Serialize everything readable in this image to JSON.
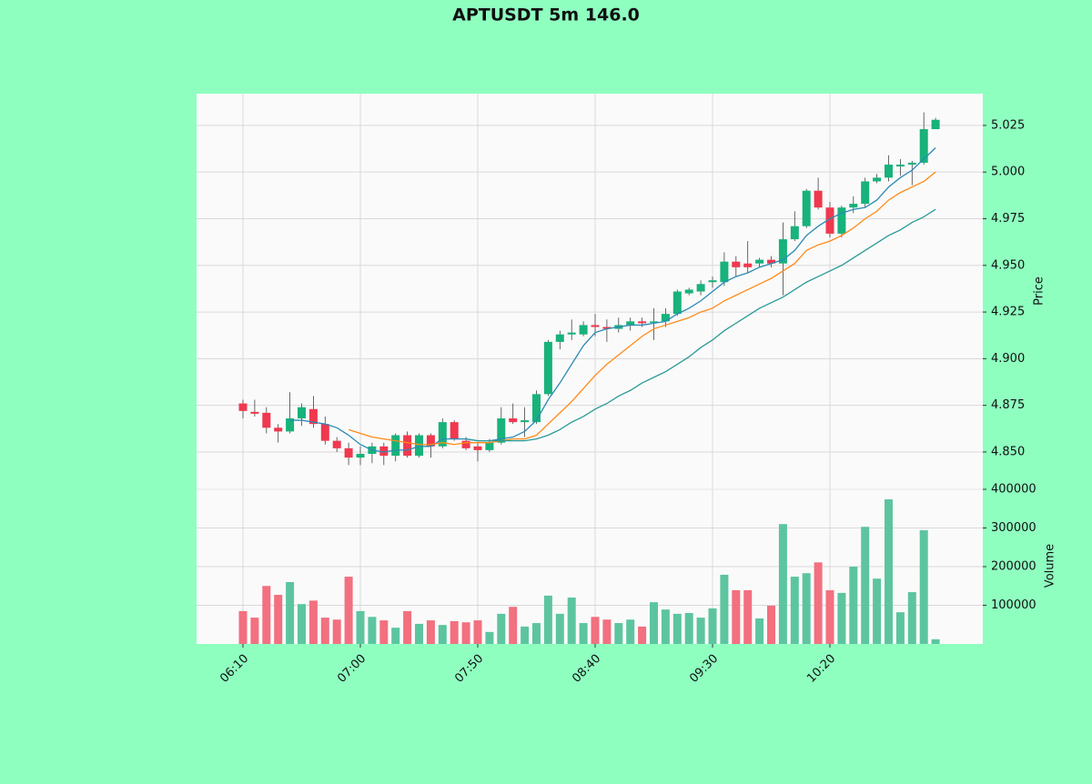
{
  "chart_data": {
    "type": "candlestick",
    "title": "APTUSDT 5m 146.0",
    "categories": [
      "06:10",
      null,
      null,
      null,
      null,
      null,
      null,
      null,
      null,
      null,
      "07:00",
      null,
      null,
      null,
      null,
      null,
      null,
      null,
      null,
      null,
      "07:50",
      null,
      null,
      null,
      null,
      null,
      null,
      null,
      null,
      null,
      "08:40",
      null,
      null,
      null,
      null,
      null,
      null,
      null,
      null,
      null,
      "09:30",
      null,
      null,
      null,
      null,
      null,
      null,
      null,
      null,
      null,
      "10:20",
      null,
      null,
      null,
      null,
      null,
      null,
      null,
      null,
      null
    ],
    "open": [
      4.876,
      4.8715,
      4.871,
      4.863,
      4.861,
      4.868,
      4.873,
      4.865,
      4.856,
      4.852,
      4.847,
      4.849,
      4.853,
      4.848,
      4.859,
      4.848,
      4.859,
      4.853,
      4.866,
      4.856,
      4.853,
      4.851,
      4.855,
      4.868,
      4.866,
      4.866,
      4.881,
      4.909,
      4.913,
      4.913,
      4.918,
      4.917,
      4.916,
      4.918,
      4.92,
      4.9195,
      4.92,
      4.924,
      4.935,
      4.936,
      4.941,
      4.941,
      4.952,
      4.951,
      4.951,
      4.953,
      4.951,
      4.964,
      4.971,
      4.99,
      4.981,
      4.967,
      4.981,
      4.983,
      4.995,
      4.997,
      5.003,
      5.004,
      5.005,
      5.023
    ],
    "high": [
      4.878,
      4.878,
      4.874,
      4.865,
      4.882,
      4.876,
      4.88,
      4.869,
      4.858,
      4.855,
      4.853,
      4.855,
      4.855,
      4.86,
      4.861,
      4.86,
      4.86,
      4.868,
      4.867,
      4.858,
      4.855,
      4.857,
      4.874,
      4.876,
      4.874,
      4.883,
      4.91,
      4.915,
      4.921,
      4.92,
      4.924,
      4.921,
      4.922,
      4.922,
      4.922,
      4.927,
      4.927,
      4.937,
      4.938,
      4.942,
      4.944,
      4.957,
      4.955,
      4.963,
      4.954,
      4.955,
      4.973,
      4.979,
      4.991,
      4.997,
      4.984,
      4.982,
      4.987,
      4.997,
      4.999,
      5.009,
      5.007,
      5.006,
      5.032,
      5.029
    ],
    "low": [
      4.868,
      4.869,
      4.86,
      4.855,
      4.86,
      4.864,
      4.863,
      4.854,
      4.85,
      4.843,
      4.843,
      4.844,
      4.843,
      4.845,
      4.847,
      4.847,
      4.847,
      4.852,
      4.856,
      4.851,
      4.845,
      4.85,
      4.854,
      4.865,
      4.858,
      4.865,
      4.88,
      4.905,
      4.91,
      4.912,
      4.912,
      4.909,
      4.914,
      4.915,
      4.917,
      4.91,
      4.917,
      4.923,
      4.934,
      4.934,
      4.938,
      4.939,
      4.944,
      4.946,
      4.949,
      4.949,
      4.934,
      4.963,
      4.97,
      4.98,
      4.965,
      4.965,
      4.978,
      4.981,
      4.994,
      4.995,
      4.998,
      4.993,
      5.004,
      5.023
    ],
    "close": [
      4.872,
      4.8705,
      4.863,
      4.861,
      4.868,
      4.874,
      4.865,
      4.856,
      4.852,
      4.847,
      4.849,
      4.853,
      4.848,
      4.859,
      4.848,
      4.859,
      4.853,
      4.866,
      4.857,
      4.852,
      4.851,
      4.855,
      4.868,
      4.866,
      4.867,
      4.881,
      4.909,
      4.913,
      4.914,
      4.918,
      4.917,
      4.916,
      4.918,
      4.92,
      4.919,
      4.92,
      4.924,
      4.936,
      4.937,
      4.94,
      4.942,
      4.952,
      4.949,
      4.949,
      4.953,
      4.951,
      4.964,
      4.971,
      4.99,
      4.981,
      4.967,
      4.981,
      4.983,
      4.995,
      4.997,
      5.004,
      5.004,
      5.005,
      5.023,
      5.028
    ],
    "volume": [
      85000,
      68000,
      150000,
      127000,
      160000,
      103000,
      112000,
      68000,
      63000,
      174000,
      85000,
      70000,
      61000,
      42000,
      85000,
      52000,
      61000,
      49000,
      59000,
      56000,
      61000,
      31000,
      78000,
      96000,
      45000,
      54000,
      125000,
      78000,
      120000,
      54000,
      70000,
      63000,
      54000,
      63000,
      45000,
      108000,
      89000,
      78000,
      80000,
      68000,
      92000,
      179000,
      139000,
      139000,
      66000,
      99000,
      310000,
      174000,
      183000,
      211000,
      139000,
      132000,
      200000,
      303000,
      169000,
      374000,
      82000,
      134000,
      294000,
      12000
    ],
    "up_color": "#18b27b",
    "down_color": "#f0384e",
    "volume_up_color": "#5cc59f",
    "volume_down_color": "#f2707f",
    "moving_averages": [
      {
        "color": "#2a8ab5",
        "values": [
          null,
          null,
          null,
          null,
          4.867,
          4.867,
          4.866,
          4.865,
          4.863,
          4.859,
          4.854,
          4.851,
          4.85,
          4.851,
          4.851,
          4.853,
          4.853,
          4.857,
          4.857,
          4.857,
          4.856,
          4.856,
          4.857,
          4.858,
          4.861,
          4.867,
          4.878,
          4.887,
          4.897,
          4.907,
          4.914,
          4.916,
          4.917,
          4.918,
          4.918,
          4.919,
          4.92,
          4.924,
          4.927,
          4.931,
          4.936,
          4.941,
          4.944,
          4.946,
          4.949,
          4.951,
          4.953,
          4.958,
          4.966,
          4.971,
          4.975,
          4.978,
          4.98,
          4.981,
          4.985,
          4.992,
          4.997,
          5.001,
          5.007,
          5.013
        ]
      },
      {
        "color": "#ff8a17",
        "values": [
          null,
          null,
          null,
          null,
          null,
          null,
          null,
          null,
          null,
          4.862,
          4.86,
          4.858,
          4.857,
          4.856,
          4.855,
          4.854,
          4.854,
          4.855,
          4.854,
          4.855,
          4.855,
          4.855,
          4.856,
          4.857,
          4.857,
          4.859,
          4.865,
          4.871,
          4.877,
          4.884,
          4.891,
          4.897,
          4.902,
          4.907,
          4.912,
          4.916,
          4.918,
          4.92,
          4.922,
          4.925,
          4.927,
          4.931,
          4.934,
          4.937,
          4.94,
          4.943,
          4.947,
          4.951,
          4.958,
          4.961,
          4.963,
          4.966,
          4.97,
          4.975,
          4.979,
          4.985,
          4.989,
          4.992,
          4.995,
          5.0
        ]
      },
      {
        "color": "#2a9a96",
        "values": [
          null,
          null,
          null,
          null,
          null,
          null,
          null,
          null,
          null,
          null,
          null,
          null,
          null,
          null,
          null,
          null,
          null,
          null,
          null,
          4.857,
          4.856,
          4.856,
          4.856,
          4.856,
          4.856,
          4.857,
          4.859,
          4.862,
          4.866,
          4.869,
          4.873,
          4.876,
          4.88,
          4.883,
          4.887,
          4.89,
          4.893,
          4.897,
          4.901,
          4.906,
          4.91,
          4.915,
          4.919,
          4.923,
          4.927,
          4.93,
          4.933,
          4.937,
          4.941,
          4.944,
          4.947,
          4.95,
          4.954,
          4.958,
          4.962,
          4.966,
          4.969,
          4.973,
          4.976,
          4.98
        ]
      }
    ],
    "ylabel": "Price",
    "ylim": [
      4.83,
      5.042
    ],
    "yticks": [
      {
        "value": 4.85,
        "label": "4.850"
      },
      {
        "value": 4.875,
        "label": "4.875"
      },
      {
        "value": 4.9,
        "label": "4.900"
      },
      {
        "value": 4.925,
        "label": "4.925"
      },
      {
        "value": 4.95,
        "label": "4.950"
      },
      {
        "value": 4.975,
        "label": "4.975"
      },
      {
        "value": 5,
        "label": "5.000"
      },
      {
        "value": 5.025,
        "label": "5.025"
      }
    ],
    "volume_label": "Volume",
    "volume_ylim": [
      0,
      400000
    ],
    "volume_yticks": [
      100000,
      200000,
      300000,
      400000
    ],
    "grid": true
  }
}
